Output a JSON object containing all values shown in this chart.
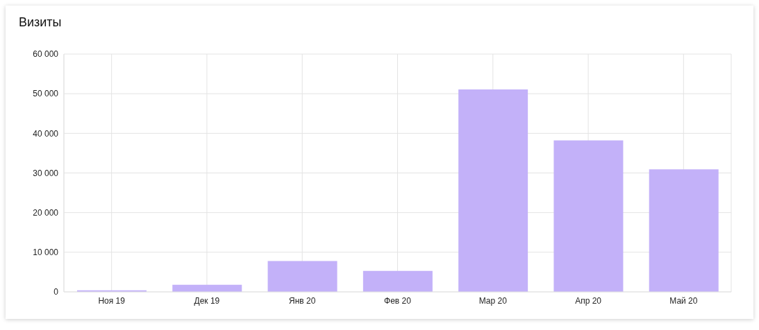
{
  "chart_data": {
    "type": "bar",
    "title": "Визиты",
    "categories": [
      "Ноя 19",
      "Дек 19",
      "Янв 20",
      "Фев 20",
      "Мар 20",
      "Апр 20",
      "Май 20"
    ],
    "values": [
      400,
      1800,
      7800,
      5300,
      51100,
      38200,
      30900
    ],
    "color": "#c3b1f9",
    "ylim": [
      0,
      60000
    ],
    "yticks": [
      0,
      {
        "value": 10000,
        "label": "10 000"
      },
      {
        "value": 20000,
        "label": "20 000"
      },
      {
        "value": 30000,
        "label": "30 000"
      },
      {
        "value": 40000,
        "label": "40 000"
      },
      {
        "value": 50000,
        "label": "50 000"
      },
      {
        "value": 60000,
        "label": "60 000"
      }
    ],
    "grid": true
  }
}
